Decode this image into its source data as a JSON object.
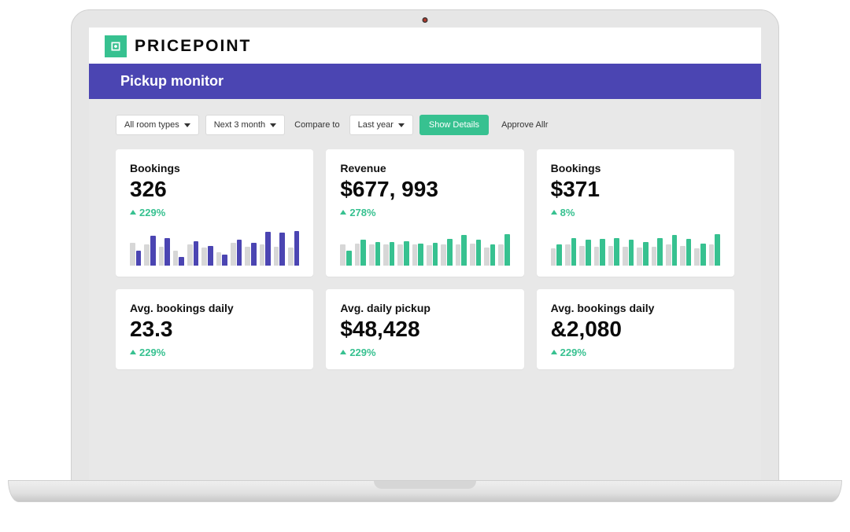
{
  "colors": {
    "accent_green": "#37c190",
    "accent_purple": "#4b45b2",
    "bar_bg_grey": "#d7d7d7",
    "white": "#ffffff",
    "screen_bg": "#e8e8e8"
  },
  "brand": {
    "name": "PRICEPOINT"
  },
  "page": {
    "title": "Pickup monitor"
  },
  "filters": {
    "room_type": "All room types",
    "period": "Next 3 month",
    "compare_label": "Compare to",
    "compare_value": "Last year",
    "show_details": "Show Details",
    "approve": "Approve Allr"
  },
  "cards": [
    {
      "id": "bookings-1",
      "title": "Bookings",
      "value": "326",
      "trend_pct": "229%",
      "trend_color": "#37c190",
      "chart": {
        "bar_color": "#4b45b2",
        "bg_color": "#d7d7d7",
        "max": 100,
        "pairs": [
          {
            "bg": 60,
            "fg": 40
          },
          {
            "bg": 55,
            "fg": 78
          },
          {
            "bg": 50,
            "fg": 72
          },
          {
            "bg": 40,
            "fg": 22
          },
          {
            "bg": 55,
            "fg": 65
          },
          {
            "bg": 48,
            "fg": 52
          },
          {
            "bg": 35,
            "fg": 28
          },
          {
            "bg": 60,
            "fg": 68
          },
          {
            "bg": 50,
            "fg": 60
          },
          {
            "bg": 55,
            "fg": 90
          },
          {
            "bg": 50,
            "fg": 88
          },
          {
            "bg": 48,
            "fg": 92
          }
        ]
      }
    },
    {
      "id": "revenue",
      "title": "Revenue",
      "value": "$677, 993",
      "trend_pct": "278%",
      "trend_color": "#37c190",
      "chart": {
        "bar_color": "#37c190",
        "bg_color": "#d7d7d7",
        "max": 100,
        "pairs": [
          {
            "bg": 55,
            "fg": 40
          },
          {
            "bg": 58,
            "fg": 68
          },
          {
            "bg": 56,
            "fg": 62
          },
          {
            "bg": 55,
            "fg": 62
          },
          {
            "bg": 56,
            "fg": 65
          },
          {
            "bg": 55,
            "fg": 58
          },
          {
            "bg": 54,
            "fg": 60
          },
          {
            "bg": 55,
            "fg": 70
          },
          {
            "bg": 55,
            "fg": 80
          },
          {
            "bg": 58,
            "fg": 68
          },
          {
            "bg": 48,
            "fg": 55
          },
          {
            "bg": 55,
            "fg": 82
          }
        ]
      }
    },
    {
      "id": "bookings-2",
      "title": "Bookings",
      "value": "$371",
      "trend_pct": "8%",
      "trend_color": "#37c190",
      "chart": {
        "bar_color": "#37c190",
        "bg_color": "#d7d7d7",
        "max": 100,
        "pairs": [
          {
            "bg": 45,
            "fg": 55
          },
          {
            "bg": 55,
            "fg": 72
          },
          {
            "bg": 52,
            "fg": 68
          },
          {
            "bg": 50,
            "fg": 70
          },
          {
            "bg": 52,
            "fg": 72
          },
          {
            "bg": 50,
            "fg": 68
          },
          {
            "bg": 48,
            "fg": 62
          },
          {
            "bg": 50,
            "fg": 72
          },
          {
            "bg": 55,
            "fg": 80
          },
          {
            "bg": 52,
            "fg": 70
          },
          {
            "bg": 45,
            "fg": 58
          },
          {
            "bg": 55,
            "fg": 82
          }
        ]
      }
    },
    {
      "id": "avg-bookings-daily-1",
      "title": "Avg. bookings daily",
      "value": "23.3",
      "trend_pct": "229%",
      "trend_color": "#37c190",
      "chart": null
    },
    {
      "id": "avg-daily-pickup",
      "title": "Avg. daily pickup",
      "value": "$48,428",
      "trend_pct": "229%",
      "trend_color": "#37c190",
      "chart": null
    },
    {
      "id": "avg-bookings-daily-2",
      "title": "Avg. bookings daily",
      "value": "&2,080",
      "trend_pct": "229%",
      "trend_color": "#37c190",
      "chart": null
    }
  ]
}
